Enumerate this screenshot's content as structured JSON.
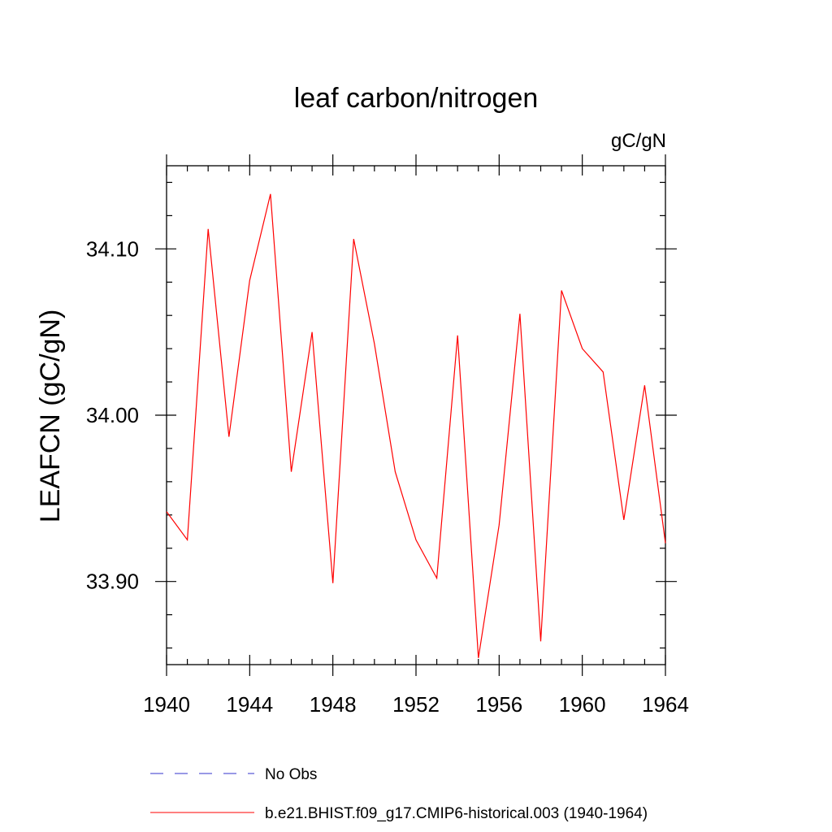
{
  "chart_data": {
    "type": "line",
    "title": "leaf carbon/nitrogen",
    "units": "gC/gN",
    "ylabel": "LEAFCN  (gC/gN)",
    "xlabel": "",
    "xlim": [
      1940,
      1964
    ],
    "ylim": [
      33.85,
      34.15
    ],
    "x_ticks": [
      1940,
      1944,
      1948,
      1952,
      1956,
      1960,
      1964
    ],
    "x_minor_tick_step": 1,
    "y_ticks": [
      33.9,
      34.0,
      34.1
    ],
    "y_tick_labels": [
      "33.90",
      "34.00",
      "34.10"
    ],
    "y_minor_tick_step": 0.02,
    "grid": false,
    "legend_position": "bottom",
    "series": [
      {
        "name": "No Obs",
        "color": "#3333cc",
        "dash": "dashed",
        "x": [],
        "values": []
      },
      {
        "name": "b.e21.BHIST.f09_g17.CMIP6-historical.003 (1940-1964)",
        "color": "#ff0000",
        "dash": "solid",
        "x": [
          1940,
          1941,
          1942,
          1943,
          1944,
          1945,
          1946,
          1947,
          1948,
          1949,
          1950,
          1951,
          1952,
          1953,
          1954,
          1955,
          1956,
          1957,
          1958,
          1959,
          1960,
          1961,
          1962,
          1963,
          1964
        ],
        "values": [
          33.942,
          33.925,
          34.112,
          33.987,
          34.081,
          34.133,
          33.966,
          34.05,
          33.899,
          34.106,
          34.043,
          33.966,
          33.925,
          33.902,
          34.048,
          33.854,
          33.934,
          34.061,
          33.864,
          34.075,
          34.04,
          34.026,
          33.937,
          34.018,
          33.923
        ]
      }
    ]
  }
}
